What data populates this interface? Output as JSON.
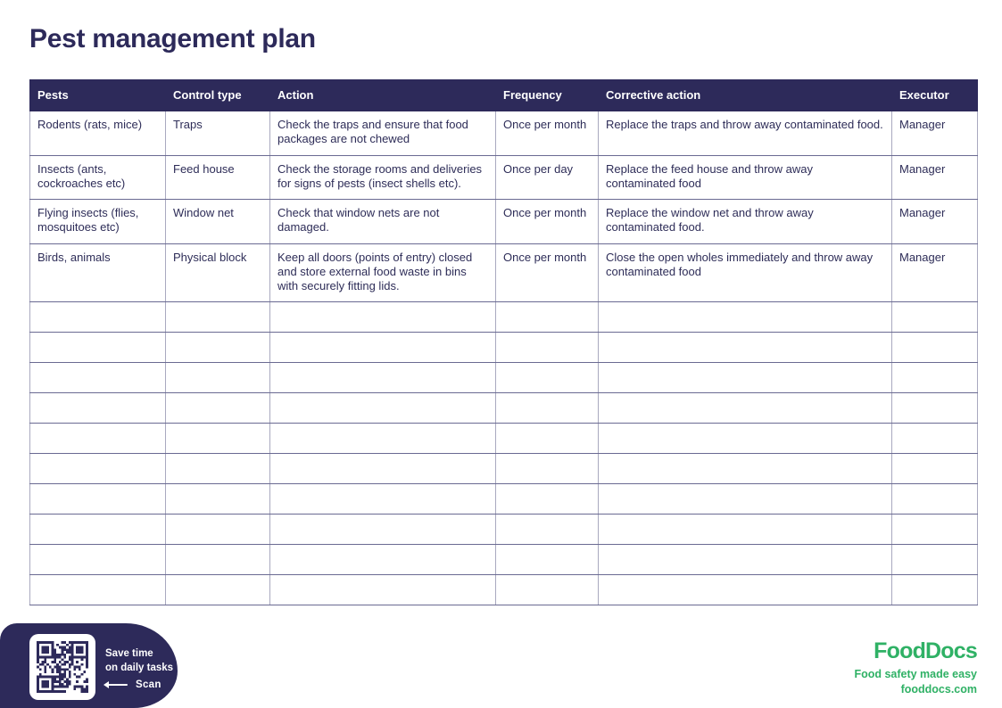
{
  "page": {
    "title": "Pest management plan"
  },
  "table": {
    "headers": [
      "Pests",
      "Control type",
      "Action",
      "Frequency",
      "Corrective action",
      "Executor"
    ],
    "rows": [
      {
        "pests": "Rodents (rats, mice)",
        "control_type": "Traps",
        "action": "Check the traps and ensure that food packages are not chewed",
        "frequency": "Once per month",
        "corrective_action": "Replace the traps and throw away contaminated food.",
        "executor": "Manager"
      },
      {
        "pests": "Insects (ants, cockroaches etc)",
        "control_type": "Feed house",
        "action": "Check the storage rooms and deliveries for signs of pests (insect shells etc).",
        "frequency": "Once per day",
        "corrective_action": "Replace the feed house and throw away contaminated food",
        "executor": "Manager"
      },
      {
        "pests": "Flying insects (flies, mosquitoes etc)",
        "control_type": "Window net",
        "action": "Check that window nets are not damaged.",
        "frequency": "Once per month",
        "corrective_action": "Replace the window net and throw away contaminated food.",
        "executor": "Manager"
      },
      {
        "pests": "Birds, animals",
        "control_type": "Physical block",
        "action": "Keep all doors (points of entry) closed and store external food waste in bins with securely fitting lids.",
        "frequency": "Once per month",
        "corrective_action": "Close the open wholes immediately and throw away contaminated food",
        "executor": "Manager"
      }
    ],
    "empty_row_count": 10
  },
  "footer": {
    "qr_badge": {
      "line1": "Save time",
      "line2": "on daily tasks",
      "scan_label": "Scan"
    },
    "brand": {
      "logo": "FoodDocs",
      "tagline": "Food safety made easy",
      "website": "fooddocs.com"
    }
  },
  "colors": {
    "navy": "#2d2a5a",
    "green": "#2fb165"
  }
}
